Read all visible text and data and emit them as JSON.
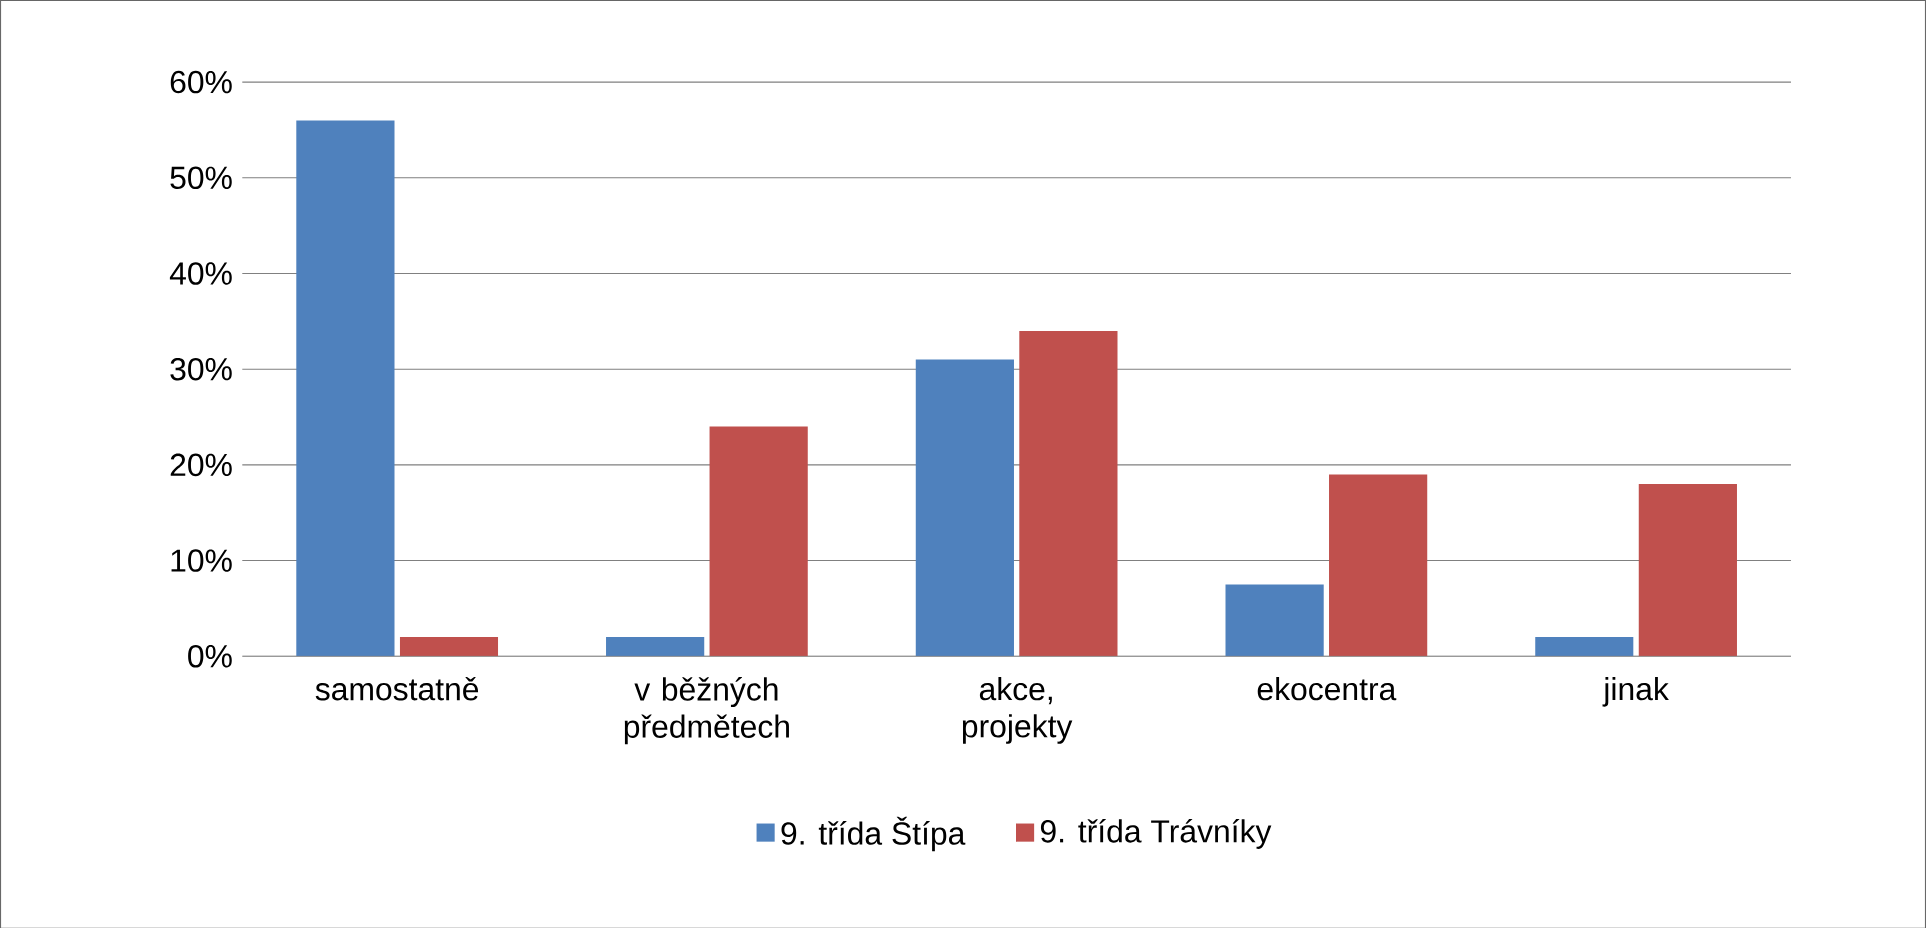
{
  "chart_data": {
    "type": "bar",
    "categories": [
      "samostatně",
      "v běžných předmětech",
      "akce, projekty",
      "ekocentra",
      "jinak"
    ],
    "series": [
      {
        "name": "9. třída Štípa",
        "color": "#4f81bd",
        "values": [
          56,
          2,
          31,
          7.5,
          2
        ]
      },
      {
        "name": "9. třída Trávníky",
        "color": "#c0504d",
        "values": [
          2,
          24,
          34,
          19,
          18
        ]
      }
    ],
    "ylim": [
      0,
      60
    ],
    "yticks": [
      {
        "value": 0,
        "label": "0%"
      },
      {
        "value": 10,
        "label": "10%"
      },
      {
        "value": 20,
        "label": "20%"
      },
      {
        "value": 30,
        "label": "30%"
      },
      {
        "value": 40,
        "label": "40%"
      },
      {
        "value": 50,
        "label": "50%"
      },
      {
        "value": 60,
        "label": "60%"
      }
    ],
    "grid": "y",
    "legend": "bottom"
  }
}
